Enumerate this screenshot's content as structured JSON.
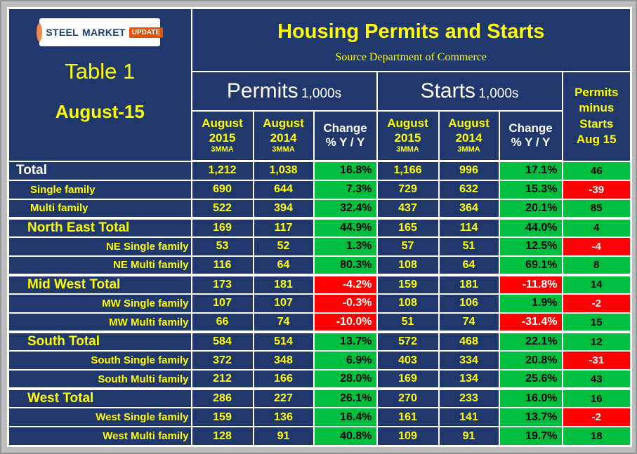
{
  "colors": {
    "background": "#20386b",
    "frame_gray": "#bdbdbd",
    "text_yellow": "#ffff00",
    "positive_green": "#00bf3f",
    "negative_red": "#ff0000"
  },
  "branding": {
    "logo_steel": "STEEL",
    "logo_market": "MARKET",
    "logo_update": "UPDATE"
  },
  "left_panel": {
    "table_label": "Table 1",
    "period": "August-15"
  },
  "header": {
    "title": "Housing Permits and Starts",
    "source": "Source Department of Commerce",
    "permits_group": "Permits",
    "permits_unit": "1,000s",
    "starts_group": "Starts",
    "starts_unit": "1,000s",
    "diff_header_lines": [
      "Permits",
      "minus",
      "Starts",
      "Aug 15"
    ],
    "col_august": "August",
    "col_2015": "2015",
    "col_2014": "2014",
    "col_3mma": "3MMA",
    "col_change": "Change",
    "col_yoy": "% Y / Y"
  },
  "chart_data": {
    "type": "table",
    "title": "Housing Permits and Starts",
    "source": "Source Department of Commerce",
    "period": "August-15",
    "columns": [
      "Permits August 2015 3MMA",
      "Permits August 2014 3MMA",
      "Permits Change % Y / Y",
      "Starts August 2015 3MMA",
      "Starts August 2014 3MMA",
      "Starts Change % Y / Y",
      "Permits minus Starts Aug 15"
    ],
    "rows": [
      {
        "label": "Total",
        "style": "total-main",
        "group_start": false,
        "permits_aug2015": "1,212",
        "permits_aug2014": "1,038",
        "permits_change": "16.8%",
        "permits_change_sign": "positive",
        "starts_aug2015": "1,166",
        "starts_aug2014": "996",
        "starts_change": "17.1%",
        "starts_change_sign": "positive",
        "permits_minus_starts": "46",
        "diff_sign": "positive"
      },
      {
        "label": "Single family",
        "style": "sub",
        "group_start": false,
        "permits_aug2015": "690",
        "permits_aug2014": "644",
        "permits_change": "7.3%",
        "permits_change_sign": "positive",
        "starts_aug2015": "729",
        "starts_aug2014": "632",
        "starts_change": "15.3%",
        "starts_change_sign": "positive",
        "permits_minus_starts": "-39",
        "diff_sign": "negative"
      },
      {
        "label": "Multi family",
        "style": "sub",
        "group_start": false,
        "permits_aug2015": "522",
        "permits_aug2014": "394",
        "permits_change": "32.4%",
        "permits_change_sign": "positive",
        "starts_aug2015": "437",
        "starts_aug2014": "364",
        "starts_change": "20.1%",
        "starts_change_sign": "positive",
        "permits_minus_starts": "85",
        "diff_sign": "positive"
      },
      {
        "label": "North East Total",
        "style": "group-total",
        "group_start": true,
        "permits_aug2015": "169",
        "permits_aug2014": "117",
        "permits_change": "44.9%",
        "permits_change_sign": "positive",
        "starts_aug2015": "165",
        "starts_aug2014": "114",
        "starts_change": "44.0%",
        "starts_change_sign": "positive",
        "permits_minus_starts": "4",
        "diff_sign": "positive"
      },
      {
        "label": "NE Single family",
        "style": "sub-right",
        "group_start": false,
        "permits_aug2015": "53",
        "permits_aug2014": "52",
        "permits_change": "1.3%",
        "permits_change_sign": "positive",
        "starts_aug2015": "57",
        "starts_aug2014": "51",
        "starts_change": "12.5%",
        "starts_change_sign": "positive",
        "permits_minus_starts": "-4",
        "diff_sign": "negative"
      },
      {
        "label": "NE Multi family",
        "style": "sub-right",
        "group_start": false,
        "permits_aug2015": "116",
        "permits_aug2014": "64",
        "permits_change": "80.3%",
        "permits_change_sign": "positive",
        "starts_aug2015": "108",
        "starts_aug2014": "64",
        "starts_change": "69.1%",
        "starts_change_sign": "positive",
        "permits_minus_starts": "8",
        "diff_sign": "positive"
      },
      {
        "label": "Mid West Total",
        "style": "group-total",
        "group_start": true,
        "permits_aug2015": "173",
        "permits_aug2014": "181",
        "permits_change": "-4.2%",
        "permits_change_sign": "negative",
        "starts_aug2015": "159",
        "starts_aug2014": "181",
        "starts_change": "-11.8%",
        "starts_change_sign": "negative",
        "permits_minus_starts": "14",
        "diff_sign": "positive"
      },
      {
        "label": "MW Single family",
        "style": "sub-right",
        "group_start": false,
        "permits_aug2015": "107",
        "permits_aug2014": "107",
        "permits_change": "-0.3%",
        "permits_change_sign": "negative",
        "starts_aug2015": "108",
        "starts_aug2014": "106",
        "starts_change": "1.9%",
        "starts_change_sign": "positive",
        "permits_minus_starts": "-2",
        "diff_sign": "negative"
      },
      {
        "label": "MW Multi family",
        "style": "sub-right",
        "group_start": false,
        "permits_aug2015": "66",
        "permits_aug2014": "74",
        "permits_change": "-10.0%",
        "permits_change_sign": "negative",
        "starts_aug2015": "51",
        "starts_aug2014": "74",
        "starts_change": "-31.4%",
        "starts_change_sign": "negative",
        "permits_minus_starts": "15",
        "diff_sign": "positive"
      },
      {
        "label": "South Total",
        "style": "group-total",
        "group_start": true,
        "permits_aug2015": "584",
        "permits_aug2014": "514",
        "permits_change": "13.7%",
        "permits_change_sign": "positive",
        "starts_aug2015": "572",
        "starts_aug2014": "468",
        "starts_change": "22.1%",
        "starts_change_sign": "positive",
        "permits_minus_starts": "12",
        "diff_sign": "positive"
      },
      {
        "label": "South Single family",
        "style": "sub-right",
        "group_start": false,
        "permits_aug2015": "372",
        "permits_aug2014": "348",
        "permits_change": "6.9%",
        "permits_change_sign": "positive",
        "starts_aug2015": "403",
        "starts_aug2014": "334",
        "starts_change": "20.8%",
        "starts_change_sign": "positive",
        "permits_minus_starts": "-31",
        "diff_sign": "negative"
      },
      {
        "label": "South Multi family",
        "style": "sub-right",
        "group_start": false,
        "permits_aug2015": "212",
        "permits_aug2014": "166",
        "permits_change": "28.0%",
        "permits_change_sign": "positive",
        "starts_aug2015": "169",
        "starts_aug2014": "134",
        "starts_change": "25.6%",
        "starts_change_sign": "positive",
        "permits_minus_starts": "43",
        "diff_sign": "positive"
      },
      {
        "label": "West Total",
        "style": "group-total",
        "group_start": true,
        "permits_aug2015": "286",
        "permits_aug2014": "227",
        "permits_change": "26.1%",
        "permits_change_sign": "positive",
        "starts_aug2015": "270",
        "starts_aug2014": "233",
        "starts_change": "16.0%",
        "starts_change_sign": "positive",
        "permits_minus_starts": "16",
        "diff_sign": "positive"
      },
      {
        "label": "West Single family",
        "style": "sub-right",
        "group_start": false,
        "permits_aug2015": "159",
        "permits_aug2014": "136",
        "permits_change": "16.4%",
        "permits_change_sign": "positive",
        "starts_aug2015": "161",
        "starts_aug2014": "141",
        "starts_change": "13.7%",
        "starts_change_sign": "positive",
        "permits_minus_starts": "-2",
        "diff_sign": "negative"
      },
      {
        "label": "West Multi family",
        "style": "sub-right",
        "group_start": false,
        "permits_aug2015": "128",
        "permits_aug2014": "91",
        "permits_change": "40.8%",
        "permits_change_sign": "positive",
        "starts_aug2015": "109",
        "starts_aug2014": "91",
        "starts_change": "19.7%",
        "starts_change_sign": "positive",
        "permits_minus_starts": "18",
        "diff_sign": "positive"
      }
    ]
  }
}
